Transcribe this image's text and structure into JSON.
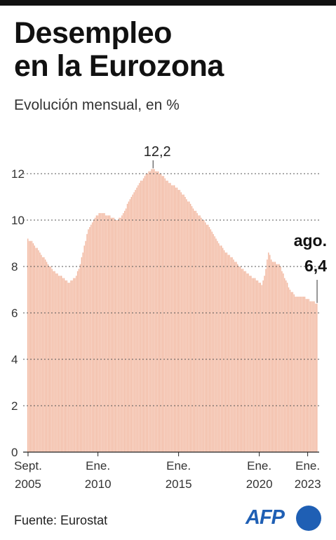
{
  "header": {
    "title_line1": "Desempleo",
    "title_line2": "en la Eurozona",
    "subtitle": "Evolución mensual, en %"
  },
  "footer": {
    "source": "Fuente: Eurostat",
    "logo_text": "AFP"
  },
  "colors": {
    "bar": "#f2b79f",
    "bar_gap": "#ffffff",
    "text": "#1a1a1a",
    "grid": "#555555",
    "logo": "#1f5fb4"
  },
  "chart_data": {
    "type": "bar",
    "title": "Desempleo en la Eurozona",
    "subtitle": "Evolución mensual, en %",
    "ylim": [
      0,
      12
    ],
    "yticks": [
      0,
      2,
      4,
      6,
      8,
      10,
      12
    ],
    "grid": true,
    "x_start": "2005-09",
    "x_end": "2023-08",
    "xticks": [
      {
        "date": "2005-09",
        "line1": "Sept.",
        "line2": "2005"
      },
      {
        "date": "2010-01",
        "line1": "Ene.",
        "line2": "2010"
      },
      {
        "date": "2015-01",
        "line1": "Ene.",
        "line2": "2015"
      },
      {
        "date": "2020-01",
        "line1": "Ene.",
        "line2": "2020"
      },
      {
        "date": "2023-01",
        "line1": "Ene.",
        "line2": "2023"
      }
    ],
    "keypoints": [
      [
        "2005-09",
        9.2
      ],
      [
        "2006-01",
        9.0
      ],
      [
        "2006-06",
        8.6
      ],
      [
        "2006-12",
        8.1
      ],
      [
        "2007-06",
        7.7
      ],
      [
        "2007-12",
        7.5
      ],
      [
        "2008-03",
        7.3
      ],
      [
        "2008-06",
        7.4
      ],
      [
        "2008-09",
        7.6
      ],
      [
        "2008-12",
        8.1
      ],
      [
        "2009-03",
        8.9
      ],
      [
        "2009-06",
        9.6
      ],
      [
        "2009-09",
        9.9
      ],
      [
        "2009-12",
        10.2
      ],
      [
        "2010-04",
        10.3
      ],
      [
        "2010-09",
        10.2
      ],
      [
        "2011-03",
        10.0
      ],
      [
        "2011-06",
        10.1
      ],
      [
        "2011-09",
        10.4
      ],
      [
        "2011-12",
        10.8
      ],
      [
        "2012-06",
        11.4
      ],
      [
        "2012-12",
        11.9
      ],
      [
        "2013-03",
        12.1
      ],
      [
        "2013-06",
        12.2
      ],
      [
        "2013-12",
        12.0
      ],
      [
        "2014-06",
        11.6
      ],
      [
        "2014-12",
        11.4
      ],
      [
        "2015-06",
        11.0
      ],
      [
        "2015-12",
        10.5
      ],
      [
        "2016-06",
        10.1
      ],
      [
        "2016-12",
        9.7
      ],
      [
        "2017-06",
        9.1
      ],
      [
        "2017-12",
        8.6
      ],
      [
        "2018-06",
        8.3
      ],
      [
        "2018-12",
        7.9
      ],
      [
        "2019-06",
        7.6
      ],
      [
        "2019-12",
        7.4
      ],
      [
        "2020-03",
        7.2
      ],
      [
        "2020-05",
        7.6
      ],
      [
        "2020-08",
        8.6
      ],
      [
        "2020-11",
        8.2
      ],
      [
        "2021-04",
        8.1
      ],
      [
        "2021-08",
        7.5
      ],
      [
        "2021-12",
        7.0
      ],
      [
        "2022-04",
        6.7
      ],
      [
        "2022-10",
        6.7
      ],
      [
        "2023-01",
        6.6
      ],
      [
        "2023-08",
        6.4
      ]
    ],
    "annotations": [
      {
        "date": "2013-06",
        "lines": [
          "12,2"
        ]
      },
      {
        "date": "2023-08",
        "lines": [
          "ago.",
          "6,4"
        ]
      }
    ]
  }
}
